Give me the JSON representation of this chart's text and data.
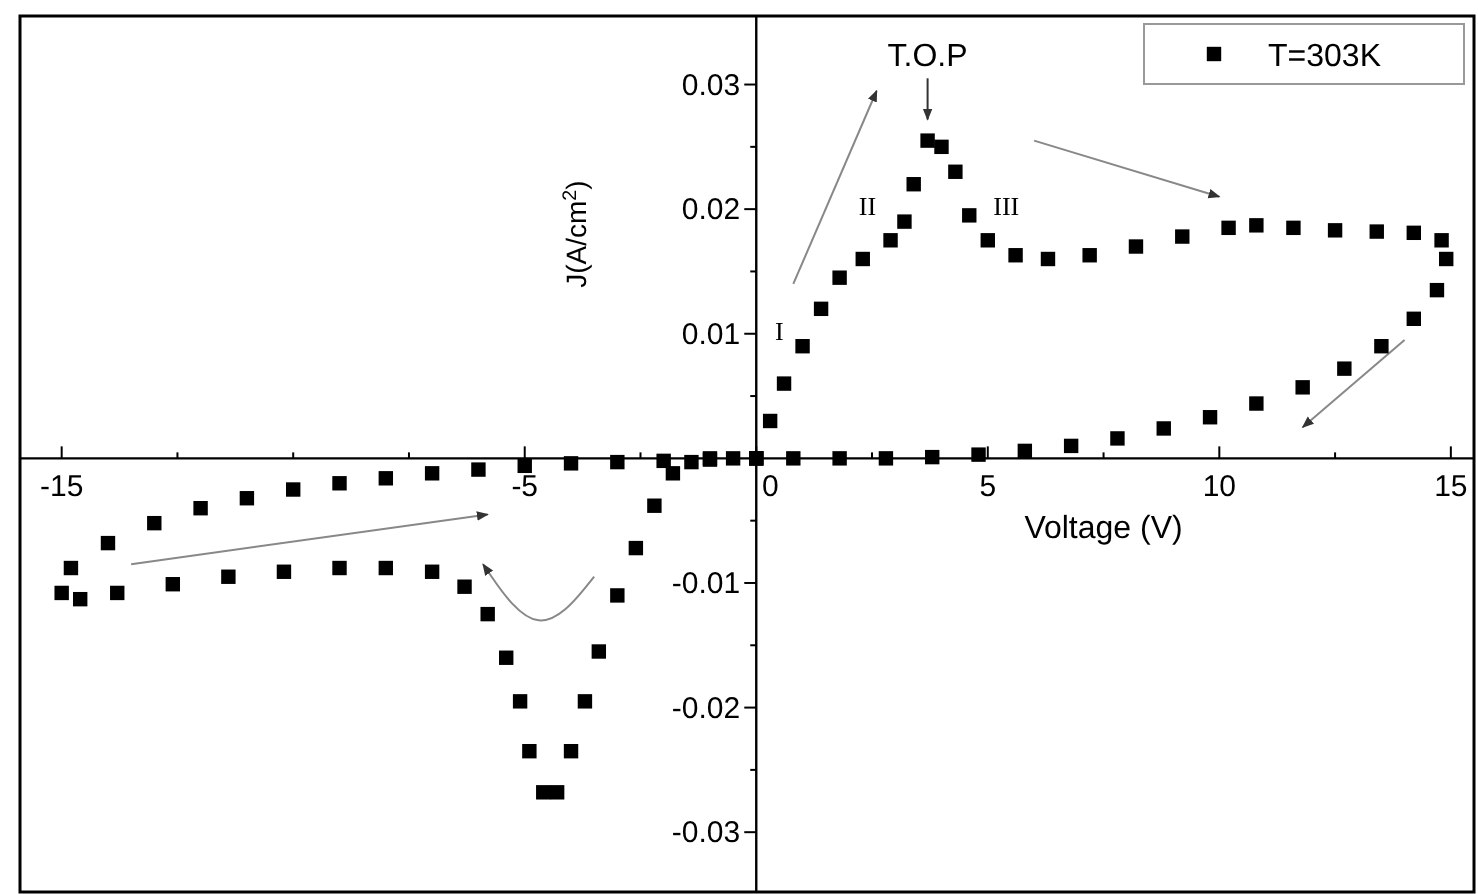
{
  "chart_data": {
    "type": "scatter",
    "xlabel": "Voltage (V)",
    "ylabel": "J(A/cm$^{2}$)",
    "xlim": [
      -15.9,
      15.5
    ],
    "ylim": [
      -0.0348,
      0.0355
    ],
    "xticks": [
      -15,
      {
        "value": -12.5,
        "label": null
      },
      {
        "value": -10,
        "label": null
      },
      {
        "value": -7.5,
        "label": null
      },
      -5,
      {
        "value": -2.5,
        "label": null
      },
      0,
      {
        "value": 2.5,
        "label": null
      },
      5,
      {
        "value": 7.5,
        "label": null
      },
      10,
      {
        "value": 12.5,
        "label": null
      },
      15
    ],
    "yticks": [
      -0.03,
      {
        "value": -0.025,
        "label": null
      },
      -0.02,
      {
        "value": -0.015,
        "label": null
      },
      -0.01,
      {
        "value": -0.005,
        "label": null
      },
      {
        "value": 0,
        "label": null
      },
      {
        "value": 0.005,
        "label": null
      },
      0.01,
      {
        "value": 0.015,
        "label": null
      },
      0.02,
      {
        "value": 0.025,
        "label": null
      },
      0.03
    ],
    "grid": false,
    "legend": "top right",
    "marker": "square",
    "annotations": [
      "T.O.P",
      "I",
      "II",
      "III"
    ],
    "series": [
      {
        "name": "T=303K",
        "color": "#000000",
        "x": [
          0,
          0.3,
          0.6,
          1.0,
          1.4,
          1.8,
          2.3,
          2.9,
          3.2,
          3.4,
          3.7,
          4.0,
          4.3,
          4.6,
          5.0,
          5.6,
          6.3,
          7.2,
          8.2,
          9.2,
          10.2,
          10.8,
          11.6,
          12.5,
          13.4,
          14.2,
          14.8,
          14.9,
          14.7,
          14.2,
          13.5,
          12.7,
          11.8,
          10.8,
          9.8,
          8.8,
          7.8,
          6.8,
          5.8,
          4.8,
          3.8,
          2.8,
          1.8,
          0.8,
          0,
          -1,
          -2,
          -3,
          -4,
          -5,
          -6,
          -7,
          -8,
          -9,
          -10,
          -11,
          -12,
          -13,
          -14,
          -14.8,
          -15.0,
          -14.6,
          -13.8,
          -12.6,
          -11.4,
          -10.2,
          -9.0,
          -8.0,
          -7.0,
          -6.3,
          -5.8,
          -5.4,
          -5.1,
          -4.9,
          -4.6,
          -4.3,
          -4.0,
          -3.7,
          -3.4,
          -3.0,
          -2.6,
          -2.2,
          -1.8,
          -1.4,
          -1.0,
          -0.5,
          0
        ],
        "values": [
          0,
          0.003,
          0.006,
          0.009,
          0.012,
          0.0145,
          0.016,
          0.0175,
          0.019,
          0.022,
          0.0255,
          0.025,
          0.023,
          0.0195,
          0.0175,
          0.0163,
          0.016,
          0.0163,
          0.017,
          0.0178,
          0.0185,
          0.0187,
          0.0185,
          0.0183,
          0.0182,
          0.0181,
          0.0175,
          0.016,
          0.0135,
          0.0112,
          0.009,
          0.0072,
          0.0057,
          0.0044,
          0.0033,
          0.0024,
          0.0016,
          0.001,
          0.0006,
          0.0003,
          0.0001,
          0,
          0,
          0,
          0,
          -0.0001,
          -0.0002,
          -0.0003,
          -0.0004,
          -0.0006,
          -0.0009,
          -0.0012,
          -0.0016,
          -0.002,
          -0.0025,
          -0.0032,
          -0.004,
          -0.0052,
          -0.0068,
          -0.0088,
          -0.0108,
          -0.0113,
          -0.0108,
          -0.0101,
          -0.0095,
          -0.0091,
          -0.0088,
          -0.0088,
          -0.0091,
          -0.0103,
          -0.0125,
          -0.016,
          -0.0195,
          -0.0235,
          -0.0268,
          -0.0268,
          -0.0235,
          -0.0195,
          -0.0155,
          -0.011,
          -0.0072,
          -0.0038,
          -0.0012,
          -0.0003,
          0,
          0,
          0
        ]
      }
    ]
  }
}
